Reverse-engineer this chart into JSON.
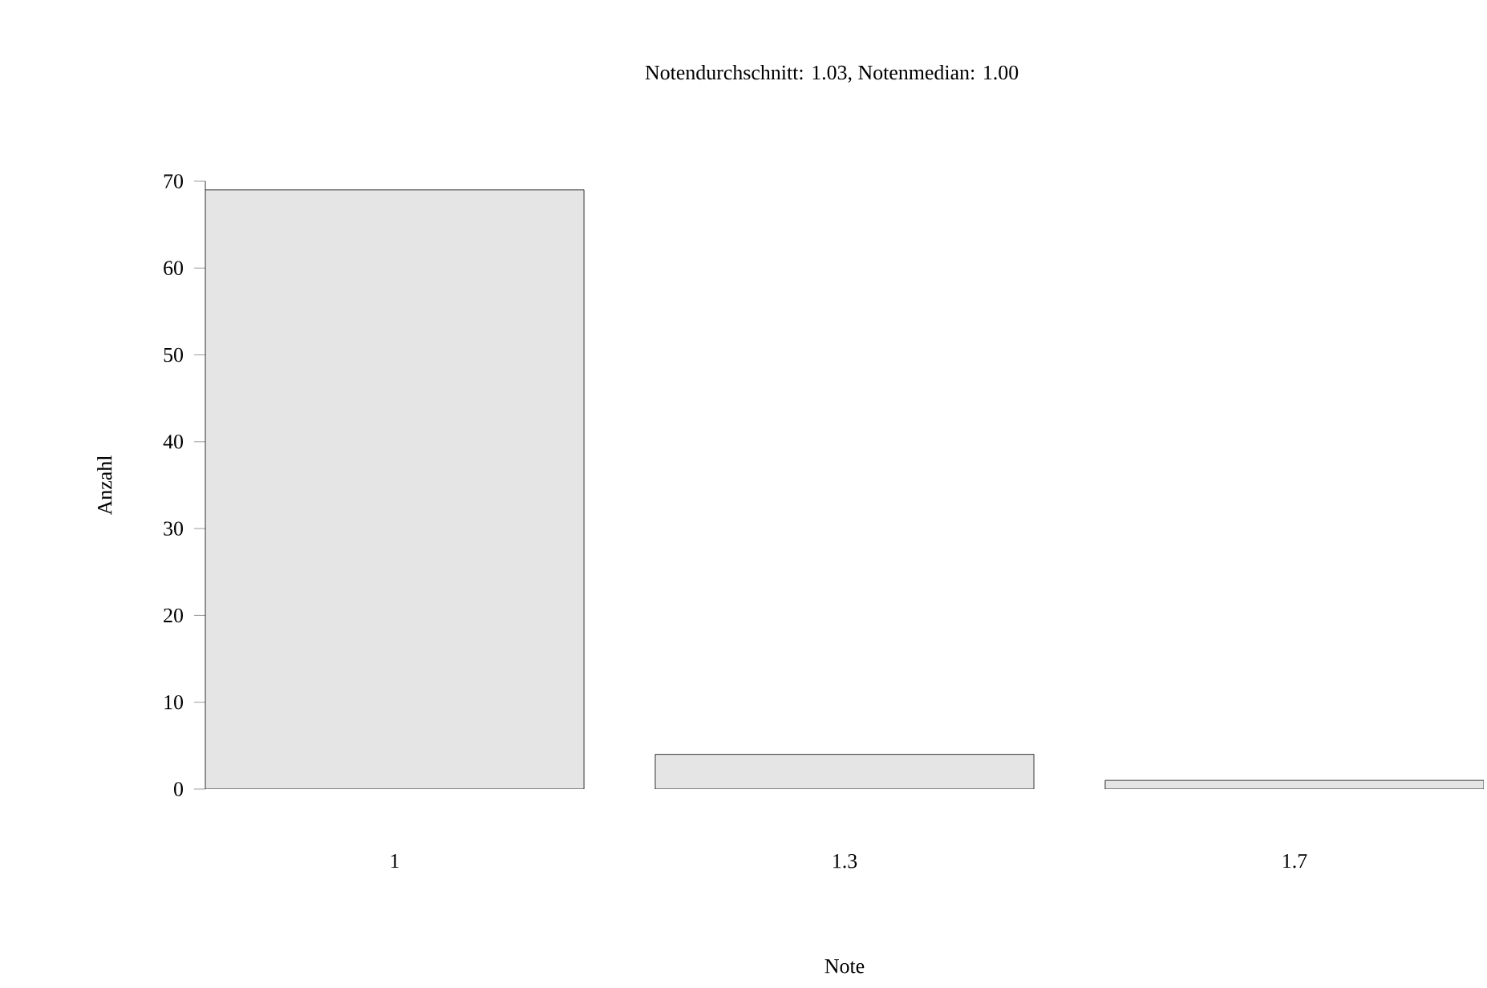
{
  "chart_data": {
    "type": "bar",
    "title": "Notendurchschnitt: 1.03, Notenmedian: 1.00",
    "xlabel": "Note",
    "ylabel": "Anzahl",
    "categories": [
      "1",
      "1.3",
      "1.7"
    ],
    "values": [
      69,
      4,
      1
    ],
    "color": "#e5e5e5",
    "ylim": [
      0,
      70
    ],
    "yticks": [
      0,
      10,
      20,
      30,
      40,
      50,
      60,
      70
    ]
  }
}
